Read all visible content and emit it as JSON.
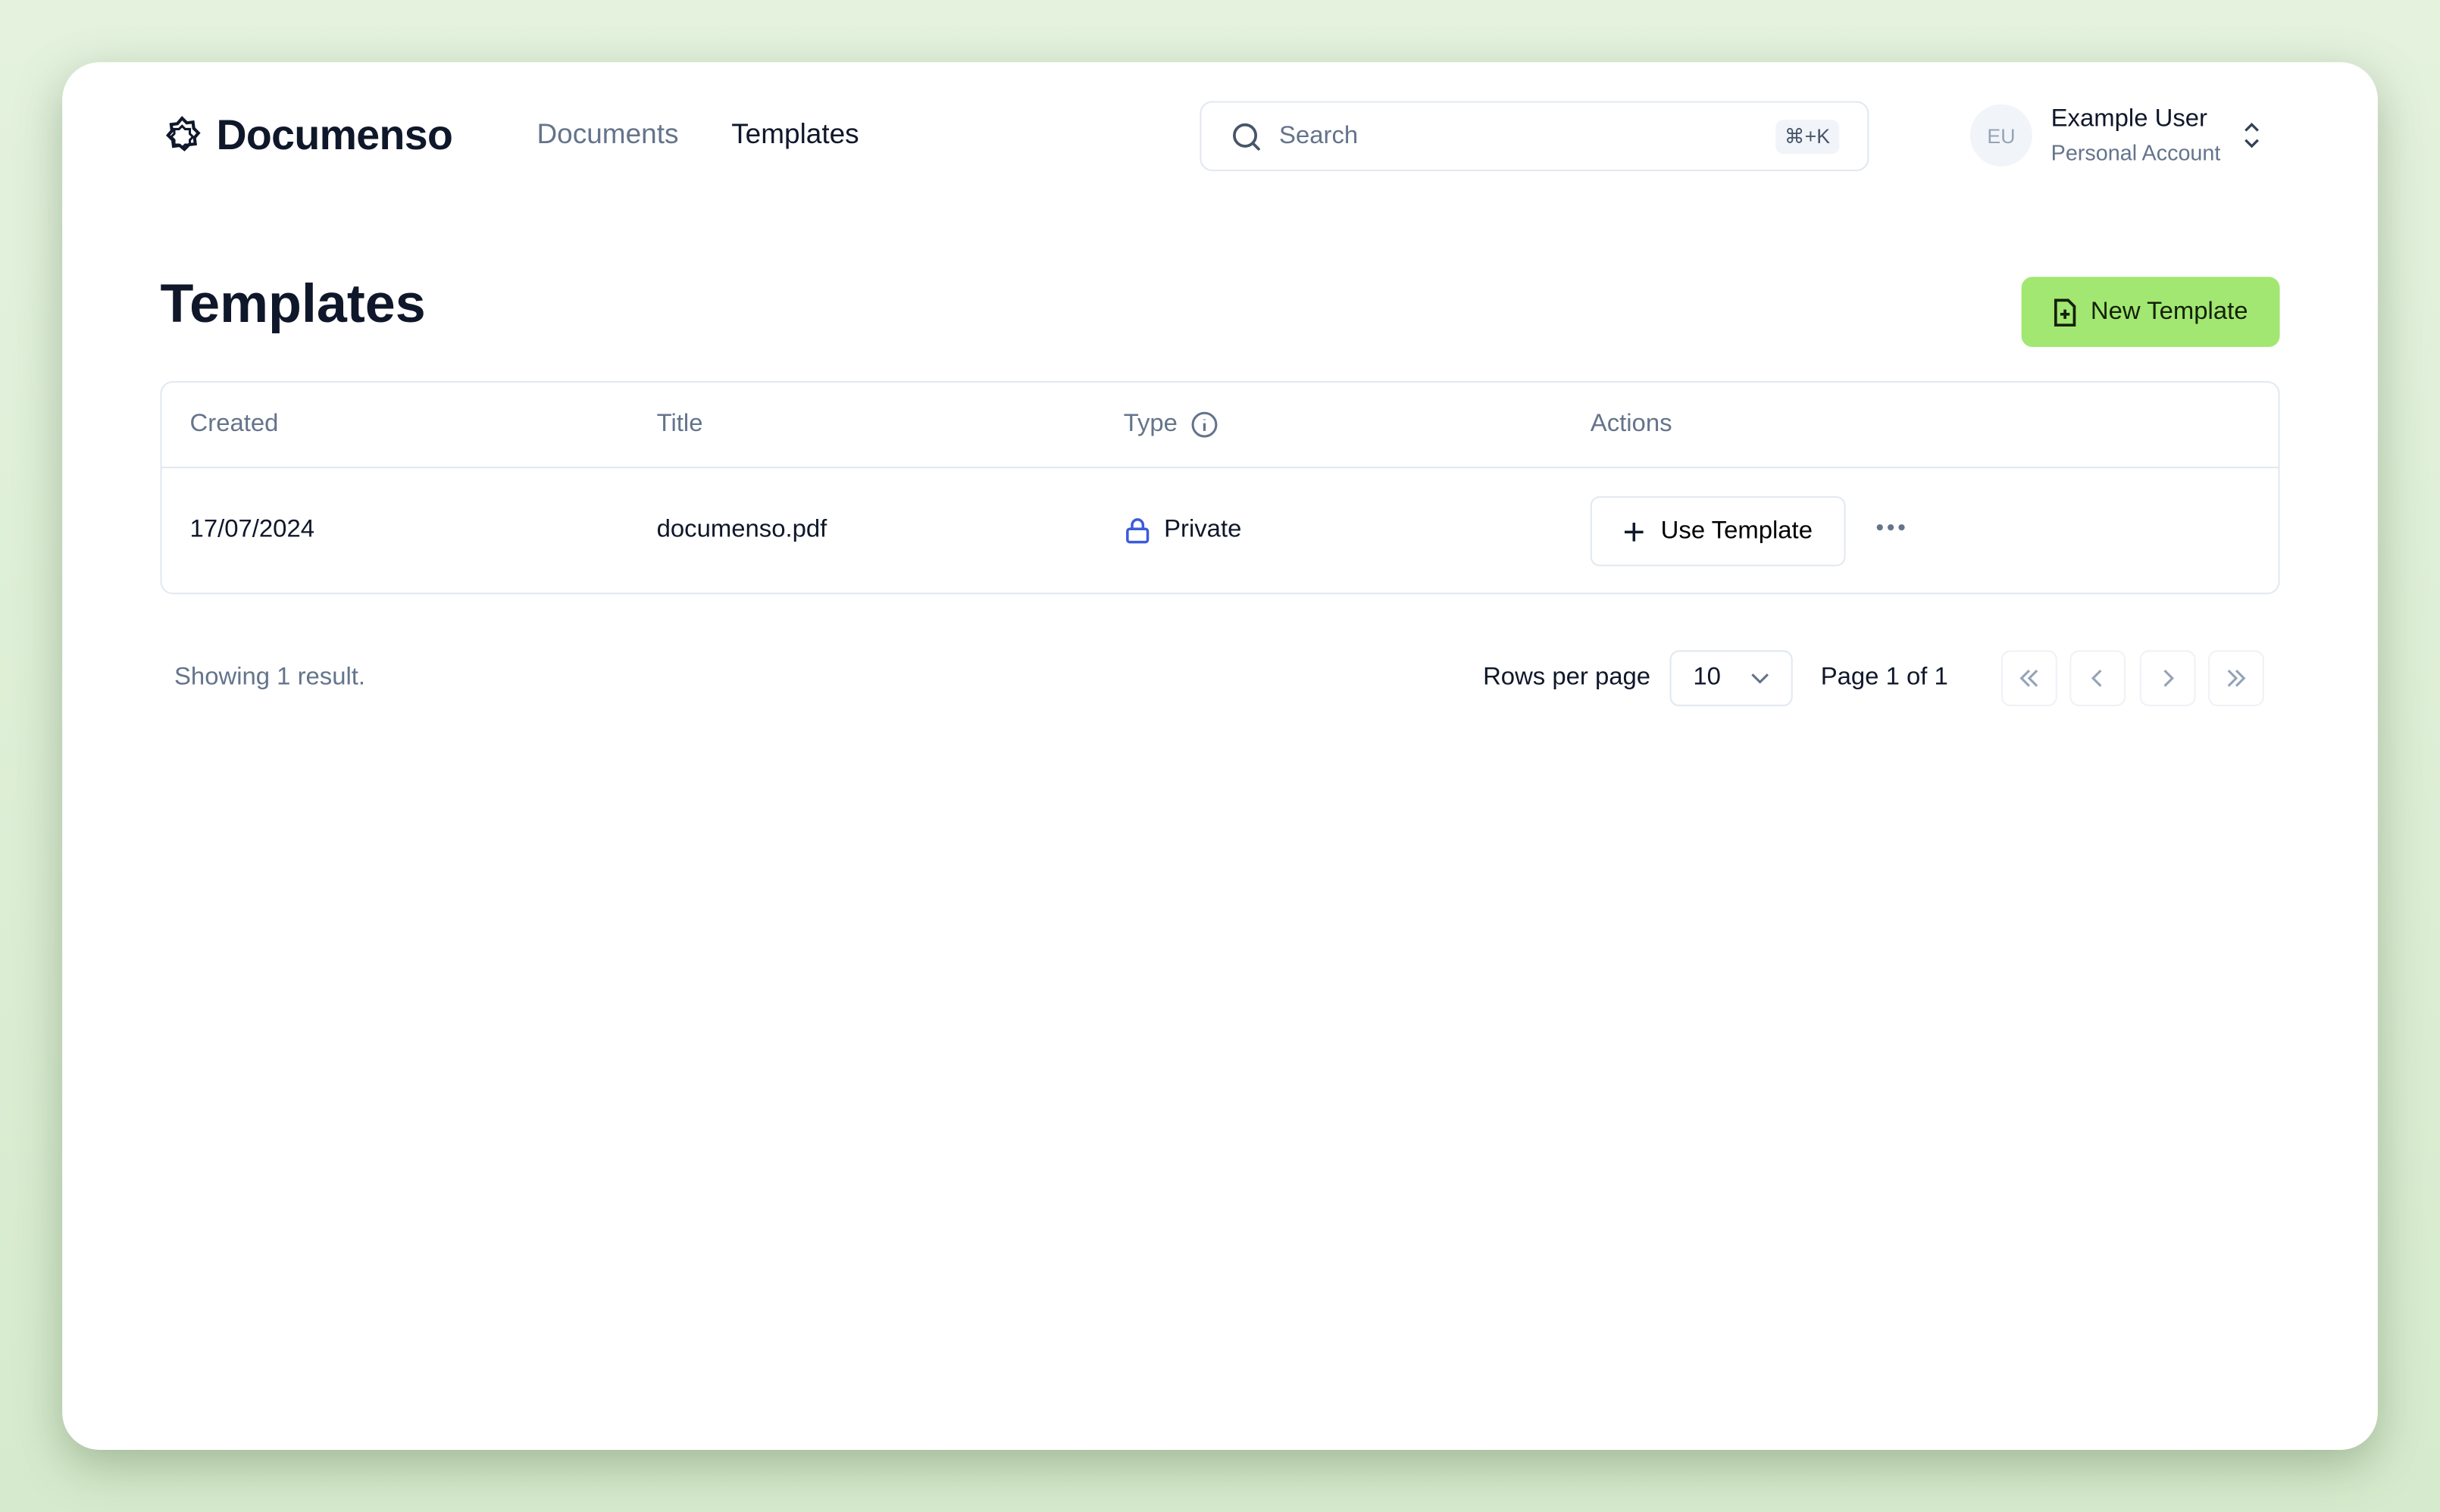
{
  "brand": {
    "name": "Documenso",
    "icon": "documenso-logo-icon"
  },
  "nav": [
    {
      "label": "Documents",
      "active": false
    },
    {
      "label": "Templates",
      "active": true
    }
  ],
  "search": {
    "placeholder": "Search",
    "shortcut": "⌘+K"
  },
  "user": {
    "initials": "EU",
    "name": "Example User",
    "account": "Personal Account"
  },
  "page": {
    "title": "Templates",
    "new_button": "New Template"
  },
  "colors": {
    "accent": "#a2e771",
    "lock": "#3b5bdb"
  },
  "table": {
    "columns": [
      "Created",
      "Title",
      "Type",
      "Actions"
    ],
    "rows": [
      {
        "created": "17/07/2024",
        "title": "documenso.pdf",
        "type": "Private",
        "action": "Use Template"
      }
    ]
  },
  "footer": {
    "showing": "Showing 1 result.",
    "rows_per_page_label": "Rows per page",
    "rows_per_page": "10",
    "page_info": "Page 1 of 1"
  }
}
